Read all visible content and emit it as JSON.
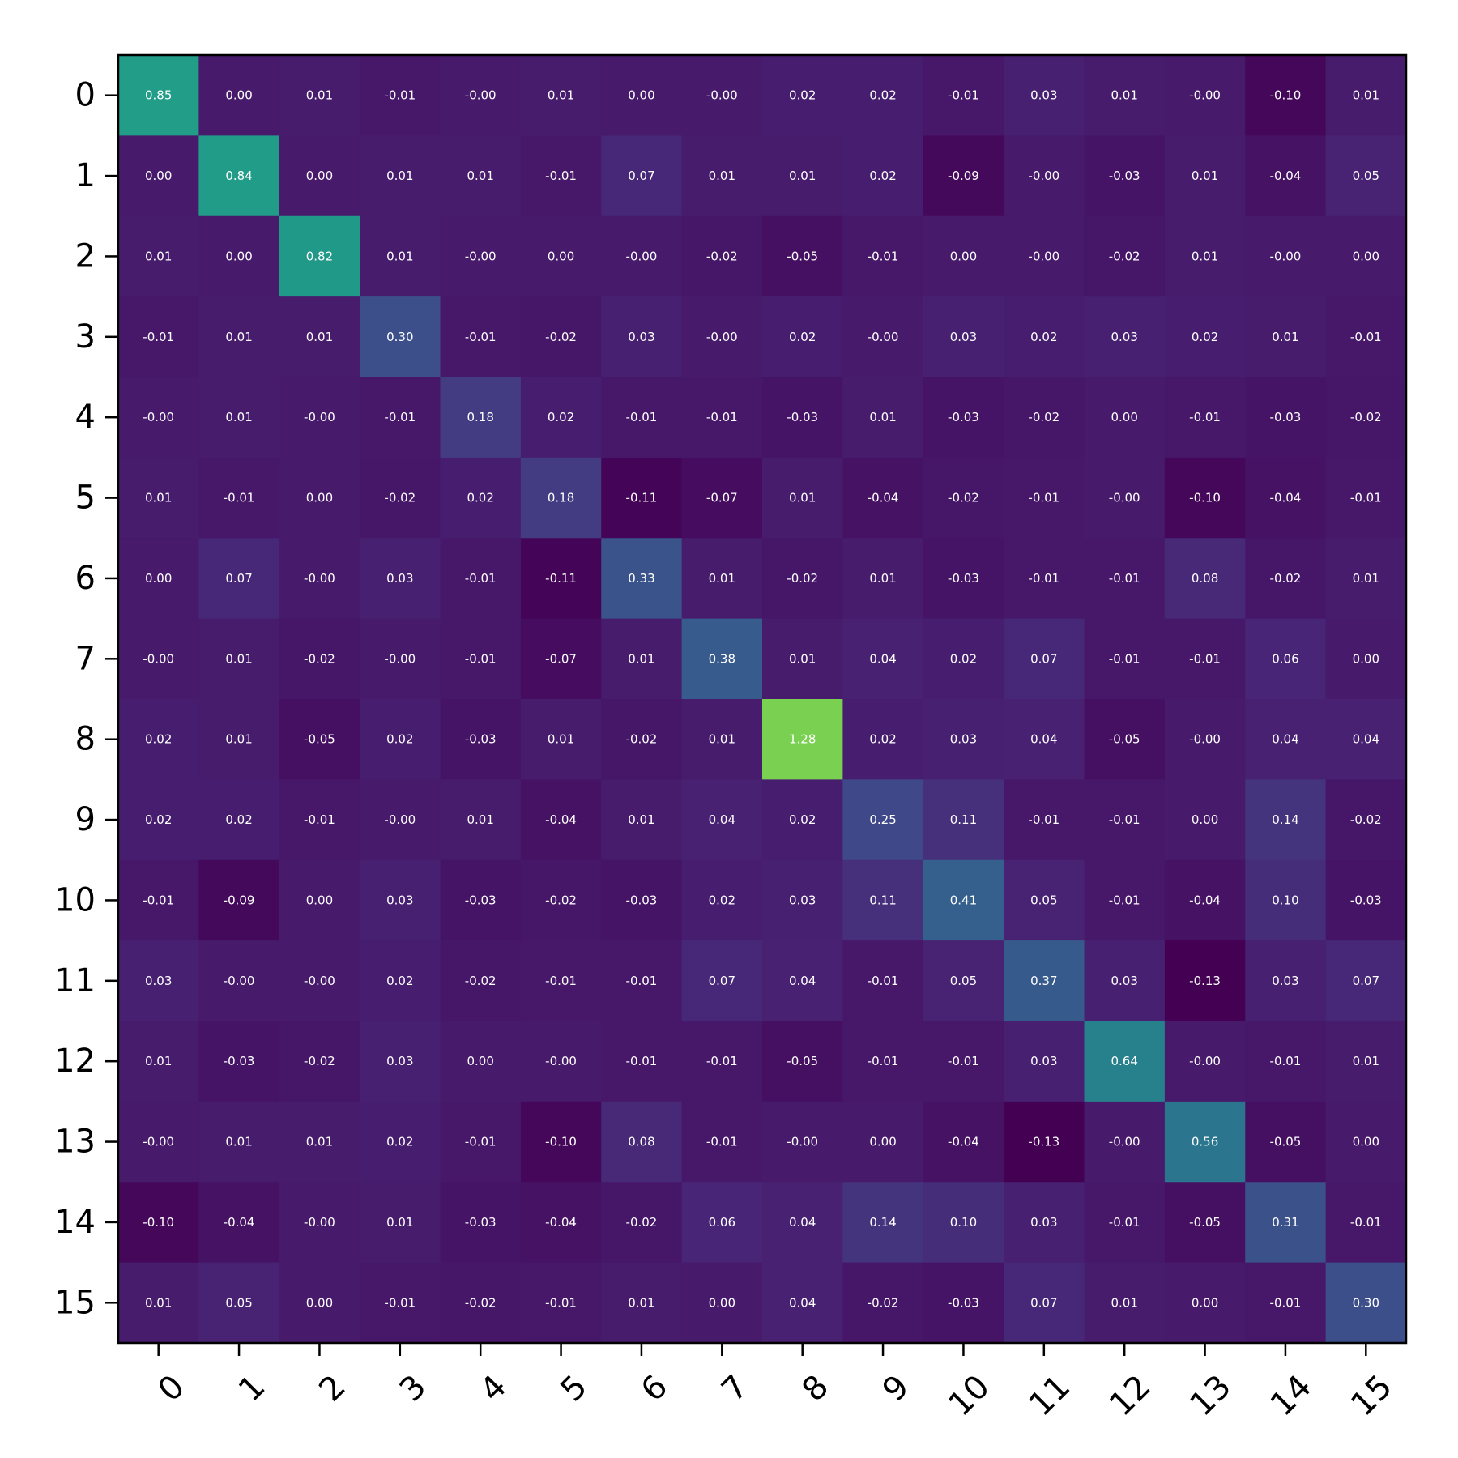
{
  "chart_data": {
    "type": "heatmap",
    "title": "",
    "xlabel": "",
    "ylabel": "",
    "x_tick_labels": [
      "0",
      "1",
      "2",
      "3",
      "4",
      "5",
      "6",
      "7",
      "8",
      "9",
      "10",
      "11",
      "12",
      "13",
      "14",
      "15"
    ],
    "y_tick_labels": [
      "0",
      "1",
      "2",
      "3",
      "4",
      "5",
      "6",
      "7",
      "8",
      "9",
      "10",
      "11",
      "12",
      "13",
      "14",
      "15"
    ],
    "colormap": "viridis",
    "color_range": [
      -0.13,
      1.28
    ],
    "values": [
      [
        0.85,
        0.0,
        0.01,
        -0.01,
        -0.0,
        0.01,
        0.0,
        -0.0,
        0.02,
        0.02,
        -0.01,
        0.03,
        0.01,
        -0.0,
        -0.1,
        0.01
      ],
      [
        0.0,
        0.84,
        0.0,
        0.01,
        0.01,
        -0.01,
        0.07,
        0.01,
        0.01,
        0.02,
        -0.09,
        -0.0,
        -0.03,
        0.01,
        -0.04,
        0.05
      ],
      [
        0.01,
        0.0,
        0.82,
        0.01,
        -0.0,
        0.0,
        -0.0,
        -0.02,
        -0.05,
        -0.01,
        0.0,
        -0.0,
        -0.02,
        0.01,
        -0.0,
        0.0
      ],
      [
        -0.01,
        0.01,
        0.01,
        0.3,
        -0.01,
        -0.02,
        0.03,
        -0.0,
        0.02,
        -0.0,
        0.03,
        0.02,
        0.03,
        0.02,
        0.01,
        -0.01
      ],
      [
        -0.0,
        0.01,
        -0.0,
        -0.01,
        0.18,
        0.02,
        -0.01,
        -0.01,
        -0.03,
        0.01,
        -0.03,
        -0.02,
        0.0,
        -0.01,
        -0.03,
        -0.02
      ],
      [
        0.01,
        -0.01,
        0.0,
        -0.02,
        0.02,
        0.18,
        -0.11,
        -0.07,
        0.01,
        -0.04,
        -0.02,
        -0.01,
        -0.0,
        -0.1,
        -0.04,
        -0.01
      ],
      [
        0.0,
        0.07,
        -0.0,
        0.03,
        -0.01,
        -0.11,
        0.33,
        0.01,
        -0.02,
        0.01,
        -0.03,
        -0.01,
        -0.01,
        0.08,
        -0.02,
        0.01
      ],
      [
        -0.0,
        0.01,
        -0.02,
        -0.0,
        -0.01,
        -0.07,
        0.01,
        0.38,
        0.01,
        0.04,
        0.02,
        0.07,
        -0.01,
        -0.01,
        0.06,
        0.0
      ],
      [
        0.02,
        0.01,
        -0.05,
        0.02,
        -0.03,
        0.01,
        -0.02,
        0.01,
        1.28,
        0.02,
        0.03,
        0.04,
        -0.05,
        -0.0,
        0.04,
        0.04
      ],
      [
        0.02,
        0.02,
        -0.01,
        -0.0,
        0.01,
        -0.04,
        0.01,
        0.04,
        0.02,
        0.25,
        0.11,
        -0.01,
        -0.01,
        0.0,
        0.14,
        -0.02
      ],
      [
        -0.01,
        -0.09,
        0.0,
        0.03,
        -0.03,
        -0.02,
        -0.03,
        0.02,
        0.03,
        0.11,
        0.41,
        0.05,
        -0.01,
        -0.04,
        0.1,
        -0.03
      ],
      [
        0.03,
        -0.0,
        -0.0,
        0.02,
        -0.02,
        -0.01,
        -0.01,
        0.07,
        0.04,
        -0.01,
        0.05,
        0.37,
        0.03,
        -0.13,
        0.03,
        0.07
      ],
      [
        0.01,
        -0.03,
        -0.02,
        0.03,
        0.0,
        -0.0,
        -0.01,
        -0.01,
        -0.05,
        -0.01,
        -0.01,
        0.03,
        0.64,
        -0.0,
        -0.01,
        0.01
      ],
      [
        -0.0,
        0.01,
        0.01,
        0.02,
        -0.01,
        -0.1,
        0.08,
        -0.01,
        -0.0,
        0.0,
        -0.04,
        -0.13,
        -0.0,
        0.56,
        -0.05,
        0.0
      ],
      [
        -0.1,
        -0.04,
        -0.0,
        0.01,
        -0.03,
        -0.04,
        -0.02,
        0.06,
        0.04,
        0.14,
        0.1,
        0.03,
        -0.01,
        -0.05,
        0.31,
        -0.01
      ],
      [
        0.01,
        0.05,
        0.0,
        -0.01,
        -0.02,
        -0.01,
        0.01,
        0.0,
        0.04,
        -0.02,
        -0.03,
        0.07,
        0.01,
        0.0,
        -0.01,
        0.3
      ]
    ],
    "value_format": "2 decimals",
    "grid": false,
    "legend": "none"
  }
}
